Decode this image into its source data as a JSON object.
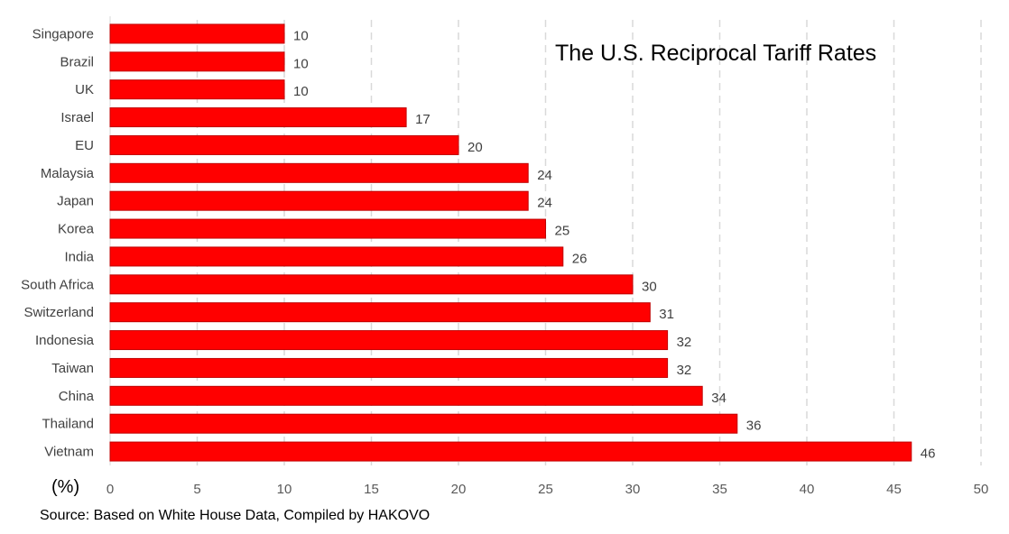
{
  "chart_data": {
    "type": "bar",
    "orientation": "horizontal",
    "title": "The U.S. Reciprocal Tariff Rates",
    "xlabel": "(%)",
    "ylabel": "",
    "xlim": [
      0,
      50
    ],
    "x_ticks": [
      0,
      5,
      10,
      15,
      20,
      25,
      30,
      35,
      40,
      45,
      50
    ],
    "grid": "vertical dashed",
    "categories": [
      "Singapore",
      "Brazil",
      "UK",
      "Israel",
      "EU",
      "Malaysia",
      "Japan",
      "Korea",
      "India",
      "South Africa",
      "Switzerland",
      "Indonesia",
      "Taiwan",
      "China",
      "Thailand",
      "Vietnam"
    ],
    "values": [
      10,
      10,
      10,
      17,
      20,
      24,
      24,
      25,
      26,
      30,
      31,
      32,
      32,
      34,
      36,
      46
    ],
    "bar_color": "#ff0000",
    "bar_edge_color": "#c00000"
  },
  "source": "Source: Based on White House Data, Compiled by HAKOVO"
}
